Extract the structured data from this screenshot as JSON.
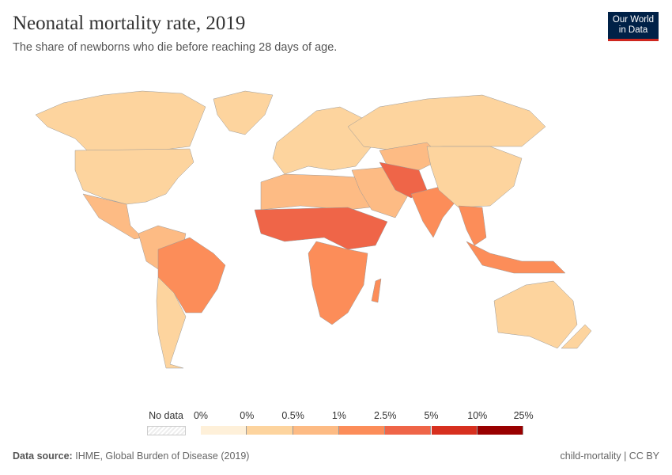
{
  "header": {
    "title": "Neonatal mortality rate, 2019",
    "subtitle": "The share of newborns who die before reaching 28 days of age.",
    "logo": "Our World in Data"
  },
  "legend": {
    "no_data_label": "No data",
    "ticks": [
      "0%",
      "0%",
      "0.5%",
      "1%",
      "2.5%",
      "5%",
      "10%",
      "25%"
    ],
    "colors": [
      "#fef0d9",
      "#fdd49e",
      "#fdbb84",
      "#fc8d59",
      "#ef6548",
      "#d7301f",
      "#990000"
    ]
  },
  "footer": {
    "source_label": "Data source:",
    "source": "IHME, Global Burden of Disease (2019)",
    "license": "child-mortality | CC BY"
  }
}
